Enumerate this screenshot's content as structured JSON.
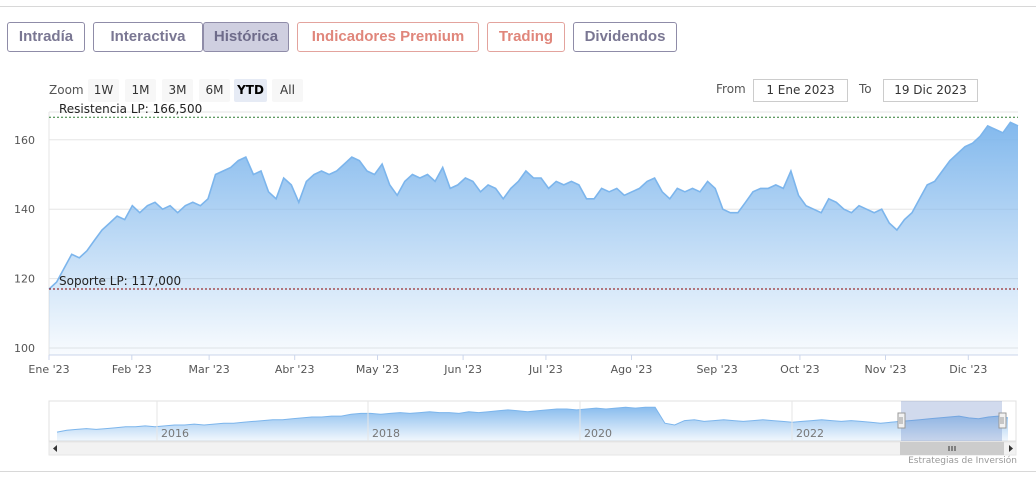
{
  "tabs": [
    {
      "label": "Intradía",
      "style": "normal"
    },
    {
      "label": "Interactiva",
      "style": "normal"
    },
    {
      "label": "Histórica",
      "style": "active"
    },
    {
      "label": "Indicadores Premium",
      "style": "premium"
    },
    {
      "label": "Trading",
      "style": "premium"
    },
    {
      "label": "Dividendos",
      "style": "normal"
    }
  ],
  "zoom": {
    "label": "Zoom",
    "buttons": [
      "1W",
      "1M",
      "3M",
      "6M",
      "YTD",
      "All"
    ],
    "selected": "YTD"
  },
  "range": {
    "from_label": "From",
    "from_value": "1 Ene 2023",
    "to_label": "To",
    "to_value": "19 Dic 2023"
  },
  "colors": {
    "tab_border": "#8f8ca8",
    "premium": "#e0867b",
    "series_line": "#7cb5ec",
    "resistance_line": "#2e7d32",
    "support_line": "#8b0000"
  },
  "chart_data": {
    "type": "area",
    "title": "",
    "xlabel": "",
    "ylabel": "",
    "y_ticks": [
      100,
      120,
      140,
      160
    ],
    "ylim": [
      98,
      168
    ],
    "x_ticks": [
      "Ene '23",
      "Feb '23",
      "Mar '23",
      "Abr '23",
      "May '23",
      "Jun '23",
      "Jul '23",
      "Ago '23",
      "Sep '23",
      "Oct '23",
      "Nov '23",
      "Dic '23"
    ],
    "grid": true,
    "series": [
      {
        "values": [
          117,
          119,
          123,
          127,
          126,
          128,
          131,
          134,
          136,
          138,
          137,
          141,
          139,
          141,
          142,
          140,
          141,
          139,
          141,
          142,
          141,
          143,
          150,
          151,
          152,
          154,
          155,
          150,
          151,
          145,
          143,
          149,
          147,
          142,
          148,
          150,
          151,
          150,
          151,
          153,
          155,
          154,
          151,
          150,
          153,
          147,
          144,
          148,
          150,
          149,
          150,
          148,
          152,
          146,
          147,
          149,
          148,
          145,
          147,
          146,
          143,
          146,
          148,
          151,
          149,
          149,
          146,
          148,
          147,
          148,
          147,
          143,
          143,
          146,
          145,
          146,
          144,
          145,
          146,
          148,
          149,
          145,
          143,
          146,
          145,
          146,
          145,
          148,
          146,
          140,
          139,
          139,
          142,
          145,
          146,
          146,
          147,
          146,
          151,
          144,
          141,
          140,
          139,
          143,
          142,
          140,
          139,
          141,
          140,
          139,
          140,
          136,
          134,
          137,
          139,
          143,
          147,
          148,
          151,
          154,
          156,
          158,
          159,
          161,
          164,
          163,
          162,
          165,
          164
        ],
        "x_start": "2023-01-02",
        "x_end": "2023-12-19"
      }
    ],
    "annotations": [
      {
        "label": "Resistencia LP: 166,500",
        "value": 166.5
      },
      {
        "label": "Soporte LP: 117,000",
        "value": 117.0
      }
    ]
  },
  "navigator": {
    "year_labels": [
      "2016",
      "2018",
      "2020",
      "2022"
    ],
    "values": [
      100,
      102,
      103,
      104,
      103,
      104,
      105,
      106,
      106,
      107,
      106,
      107,
      108,
      108,
      109,
      108,
      109,
      110,
      110,
      111,
      112,
      113,
      114,
      114,
      115,
      116,
      117,
      117,
      118,
      118,
      120,
      121,
      121,
      120,
      121,
      122,
      121,
      122,
      123,
      122,
      122,
      121,
      123,
      122,
      123,
      124,
      125,
      124,
      123,
      124,
      125,
      126,
      126,
      125,
      126,
      127,
      126,
      127,
      128,
      127,
      128,
      128,
      110,
      108,
      113,
      114,
      112,
      113,
      114,
      113,
      112,
      113,
      114,
      113,
      112,
      111,
      112,
      113,
      114,
      113,
      112,
      113,
      112,
      111,
      110,
      111,
      112,
      113,
      114,
      115,
      116,
      117,
      118,
      116,
      115,
      117,
      118,
      116
    ]
  },
  "credit": "Estrategias de Inversión"
}
